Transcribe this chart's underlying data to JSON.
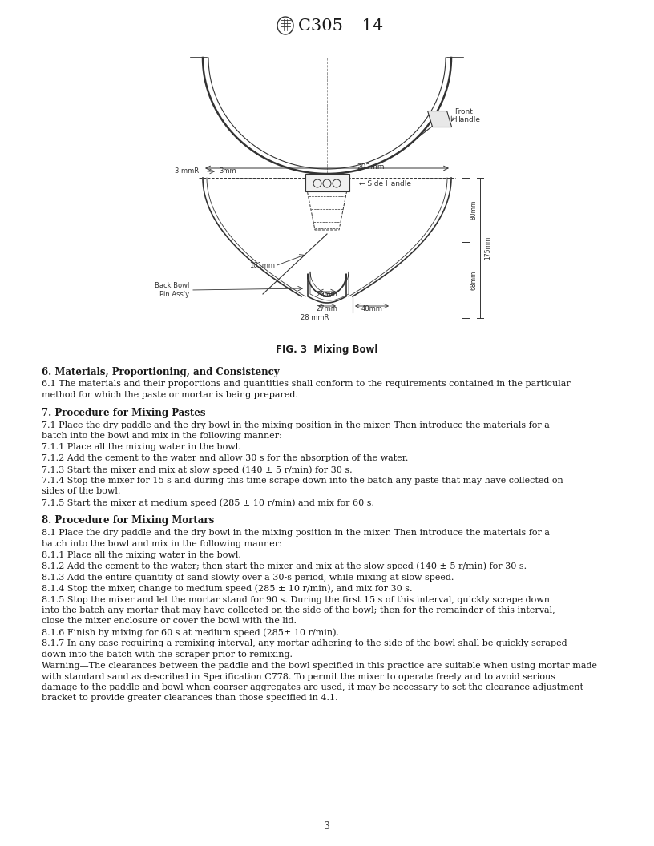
{
  "header_logo_text": "C305 – 14",
  "fig_caption": "FIG. 3  Mixing Bowl",
  "page_number": "3",
  "background_color": "#ffffff",
  "text_color": "#1a1a1a",
  "sections": [
    {
      "heading": "6.  Materials, Proportioning, and Consistency",
      "paragraphs": [
        [
          "normal",
          "    6.1  The materials and their proportions and quantities shall conform to the requirements contained in the particular method for which the paste or mortar is being prepared."
        ]
      ]
    },
    {
      "heading": "7.  Procedure for Mixing Pastes",
      "paragraphs": [
        [
          "normal",
          "    7.1  Place the dry paddle and the dry bowl in the mixing position in the mixer. Then introduce the materials for a batch into the bowl and mix in the following manner:"
        ],
        [
          "normal",
          "    7.1.1  Place all the mixing water in the bowl."
        ],
        [
          "normal",
          "    7.1.2  Add the cement to the water and allow 30 s for the absorption of the water."
        ],
        [
          "normal",
          "    7.1.3  Start the mixer and mix at slow speed (140 ± 5 r/min) for 30 s."
        ],
        [
          "normal",
          "    7.1.4  Stop the mixer for 15 s and during this time scrape down into the batch any paste that may have collected on sides of the bowl."
        ],
        [
          "normal",
          "    7.1.5  Start the mixer at medium speed (285 ± 10 r/min) and mix for 60 s."
        ]
      ]
    },
    {
      "heading": "8.  Procedure for Mixing Mortars",
      "paragraphs": [
        [
          "normal",
          "    8.1  Place the dry paddle and the dry bowl in the mixing position in the mixer. Then introduce the materials for a batch into the bowl and mix in the following manner:"
        ],
        [
          "normal",
          "    8.1.1  Place all the mixing water in the bowl."
        ],
        [
          "normal",
          "    8.1.2  Add the cement to the water; then start the mixer and mix at the slow speed (140 ± 5 r/min) for 30 s."
        ],
        [
          "normal",
          "    8.1.3  Add the entire quantity of sand slowly over a 30-s period, while mixing at slow speed."
        ],
        [
          "normal",
          "    8.1.4  Stop the mixer, change to medium speed (285 ± 10 r/min), and mix for 30 s."
        ],
        [
          "normal",
          "    8.1.5  Stop the mixer and let the mortar stand for 90 s. During the first 15 s of this interval, quickly scrape down into the batch any mortar that may have collected on the side of the bowl; then for the remainder of this interval, close the mixer enclosure or cover the bowl with the lid."
        ],
        [
          "normal",
          "    8.1.6  Finish by mixing for 60 s at medium speed (285± 10 r/min)."
        ],
        [
          "normal",
          "    8.1.7  In any case requiring a remixing interval, any mortar adhering to the side of the bowl shall be quickly scraped down into the batch with the scraper prior to remixing."
        ],
        [
          "warning",
          "    Warning—The clearances between the paddle and the bowl specified in this practice are suitable when using mortar made with standard sand as described in Specification C778. To permit the mixer to operate freely and to avoid serious damage to the paddle and bowl when coarser aggregates are used, it may be necessary to set the clearance adjustment bracket to provide greater clearances than those specified in 4.1."
        ]
      ]
    }
  ]
}
